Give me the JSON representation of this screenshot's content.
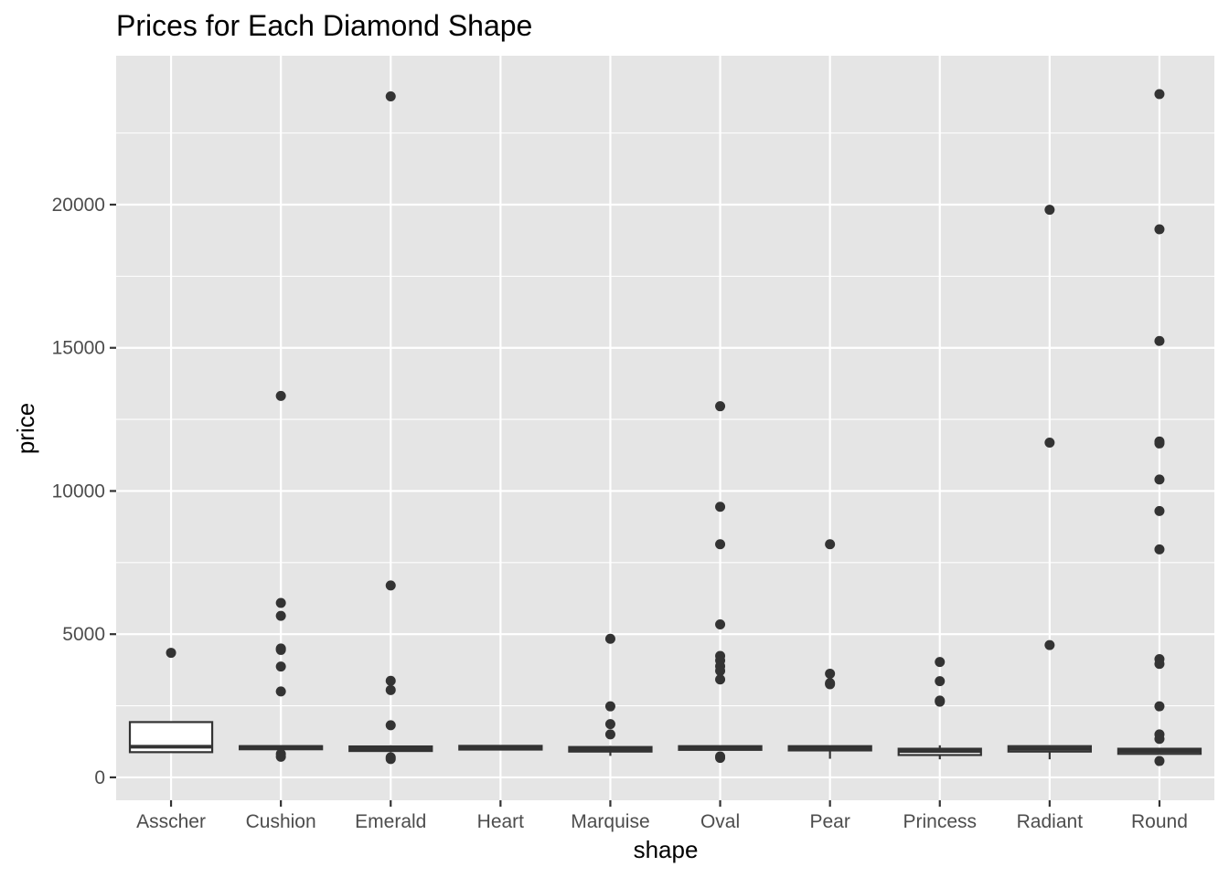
{
  "chart_data": {
    "type": "boxplot",
    "title": "Prices for Each Diamond Shape",
    "xlabel": "shape",
    "ylabel": "price",
    "ylim": [
      -800,
      25200
    ],
    "y_ticks": [
      0,
      5000,
      10000,
      15000,
      20000
    ],
    "y_minor_ticks": [
      2500,
      7500,
      12500,
      17500,
      22500
    ],
    "grid": true,
    "panel_background": "#e5e5e5",
    "grid_color": "#ffffff",
    "box_color": "#333333",
    "point_color": "#333333",
    "categories": [
      "Asscher",
      "Cushion",
      "Emerald",
      "Heart",
      "Marquise",
      "Oval",
      "Pear",
      "Princess",
      "Radiant",
      "Round"
    ],
    "boxes": [
      {
        "category": "Asscher",
        "whisker_low": 880,
        "q1": 880,
        "median": 1070,
        "q3": 1930,
        "whisker_high": 1930,
        "outliers": [
          4350
        ]
      },
      {
        "category": "Cushion",
        "whisker_low": 980,
        "q1": 980,
        "median": 1060,
        "q3": 1090,
        "whisker_high": 1090,
        "outliers": [
          13320,
          6090,
          5640,
          4500,
          4450,
          3870,
          3000,
          820,
          720
        ]
      },
      {
        "category": "Emerald",
        "whisker_low": 880,
        "q1": 920,
        "median": 1000,
        "q3": 1080,
        "whisker_high": 1120,
        "outliers": [
          23780,
          6700,
          3370,
          3050,
          1820,
          700,
          640
        ]
      },
      {
        "category": "Heart",
        "whisker_low": 950,
        "q1": 970,
        "median": 1040,
        "q3": 1100,
        "whisker_high": 1110,
        "outliers": []
      },
      {
        "category": "Marquise",
        "whisker_low": 750,
        "q1": 900,
        "median": 970,
        "q3": 1060,
        "whisker_high": 1100,
        "outliers": [
          4840,
          2480,
          1860,
          1500
        ]
      },
      {
        "category": "Oval",
        "whisker_low": 940,
        "q1": 960,
        "median": 1010,
        "q3": 1090,
        "whisker_high": 1100,
        "outliers": [
          12960,
          9450,
          8140,
          5340,
          4240,
          4080,
          3880,
          3720,
          3420,
          730,
          680
        ]
      },
      {
        "category": "Pear",
        "whisker_low": 650,
        "q1": 940,
        "median": 1010,
        "q3": 1090,
        "whisker_high": 1100,
        "outliers": [
          8140,
          3620,
          3290,
          3250
        ]
      },
      {
        "category": "Princess",
        "whisker_low": 630,
        "q1": 780,
        "median": 920,
        "q3": 1000,
        "whisker_high": 1120,
        "outliers": [
          4030,
          3360,
          2680,
          2640
        ]
      },
      {
        "category": "Radiant",
        "whisker_low": 630,
        "q1": 900,
        "median": 1000,
        "q3": 1090,
        "whisker_high": 1120,
        "outliers": [
          19820,
          11690,
          4620
        ]
      },
      {
        "category": "Round",
        "whisker_low": 800,
        "q1": 820,
        "median": 920,
        "q3": 1000,
        "whisker_high": 1030,
        "outliers": [
          23860,
          19140,
          15240,
          11730,
          11660,
          10400,
          9300,
          7960,
          4130,
          3960,
          2480,
          1500,
          1340,
          570
        ]
      }
    ]
  }
}
